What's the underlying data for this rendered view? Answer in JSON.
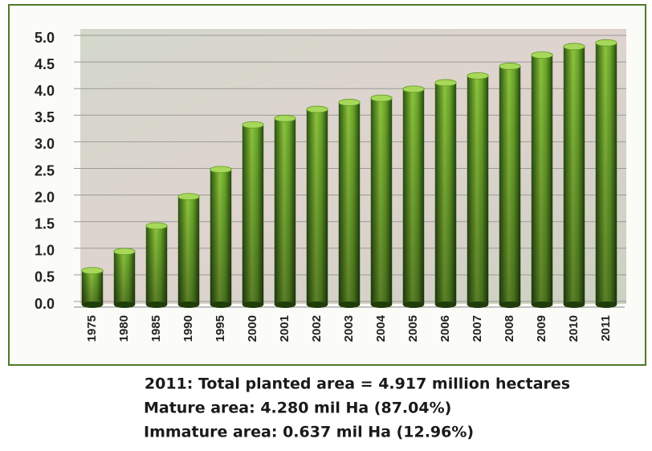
{
  "chart_data": {
    "type": "bar",
    "categories": [
      "1975",
      "1980",
      "1985",
      "1990",
      "1995",
      "2000",
      "2001",
      "2002",
      "2003",
      "2004",
      "2005",
      "2006",
      "2007",
      "2008",
      "2009",
      "2010",
      "2011"
    ],
    "values": [
      0.64,
      1.0,
      1.48,
      2.03,
      2.54,
      3.38,
      3.5,
      3.67,
      3.8,
      3.88,
      4.05,
      4.17,
      4.3,
      4.48,
      4.69,
      4.85,
      4.92
    ],
    "color": "#5d9a22",
    "ylim": [
      0,
      5
    ],
    "yticks": [
      {
        "value": 0,
        "label": "0.0"
      },
      0.5,
      {
        "value": 1,
        "label": "1.0"
      },
      1.5,
      {
        "value": 2,
        "label": "2.0"
      },
      2.5,
      {
        "value": 3,
        "label": "3.0"
      },
      3.5,
      {
        "value": 4,
        "label": "4.0"
      },
      4.5,
      {
        "value": 5,
        "label": "5.0"
      }
    ],
    "grid": true,
    "annotations": [
      "2011: Total planted area = 4.917 million hectares",
      "Mature area: 4.280 mil Ha (87.04%)",
      "Immature area: 0.637 mil Ha (12.96%)"
    ]
  }
}
